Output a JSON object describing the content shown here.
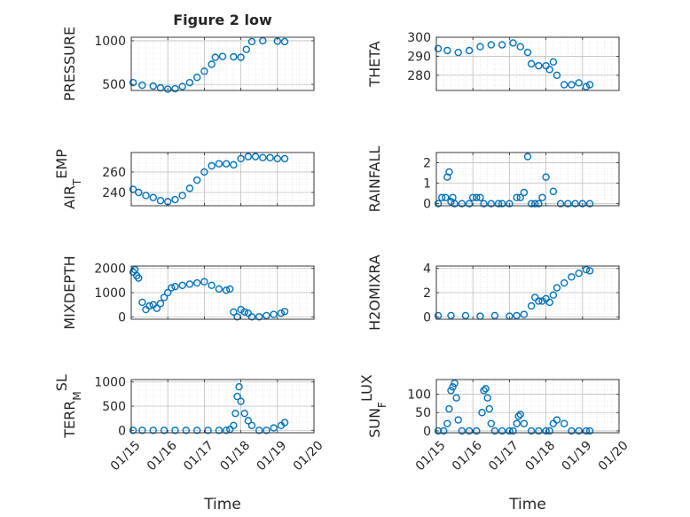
{
  "figure": {
    "title": "Figure 2 low",
    "xlabel": "Time"
  },
  "chart_data": [
    {
      "type": "scatter",
      "id": "pressure",
      "ylabel": "PRESSURE",
      "ylabel_sub": "",
      "ylabel_tail": "",
      "xlim": [
        0,
        5
      ],
      "ylim": [
        430,
        1040
      ],
      "yticks": [
        500,
        1000
      ],
      "ytick_labels": [
        "500",
        "1000"
      ],
      "grid": true,
      "minor_grid": true,
      "color": "#0072BD",
      "series": [
        {
          "x": [
            0.05,
            0.3,
            0.6,
            0.8,
            1.0,
            1.2,
            1.4,
            1.6,
            1.8,
            2.0,
            2.2,
            2.3,
            2.5,
            2.8,
            3.0,
            3.15,
            3.3,
            3.6,
            4.0,
            4.2
          ],
          "y": [
            520,
            490,
            480,
            460,
            445,
            450,
            475,
            520,
            580,
            650,
            730,
            810,
            820,
            815,
            810,
            900,
            990,
            1000,
            995,
            990
          ]
        }
      ]
    },
    {
      "type": "scatter",
      "id": "theta",
      "ylabel": "THETA",
      "ylabel_sub": "",
      "ylabel_tail": "",
      "xlim": [
        0,
        5
      ],
      "ylim": [
        272,
        300
      ],
      "yticks": [
        280,
        290,
        300
      ],
      "ytick_labels": [
        "280",
        "290",
        "300"
      ],
      "grid": true,
      "minor_grid": true,
      "color": "#0072BD",
      "series": [
        {
          "x": [
            0.05,
            0.3,
            0.6,
            0.9,
            1.2,
            1.5,
            1.8,
            2.1,
            2.3,
            2.5,
            2.6,
            2.8,
            3.0,
            3.1,
            3.2,
            3.3,
            3.5,
            3.7,
            3.9,
            4.1,
            4.2
          ],
          "y": [
            294,
            293,
            292,
            293,
            295,
            296,
            296,
            297,
            295,
            292,
            286,
            285,
            285,
            283,
            287,
            280,
            275,
            275,
            276,
            274,
            275
          ]
        }
      ]
    },
    {
      "type": "scatter",
      "id": "airtemp",
      "ylabel": "AIR",
      "ylabel_sub": "T",
      "ylabel_tail": "EMP",
      "xlim": [
        0,
        5
      ],
      "ylim": [
        227,
        279
      ],
      "yticks": [
        240,
        260
      ],
      "ytick_labels": [
        "240",
        "260"
      ],
      "grid": true,
      "minor_grid": true,
      "color": "#0072BD",
      "series": [
        {
          "x": [
            0.05,
            0.2,
            0.4,
            0.6,
            0.8,
            1.0,
            1.2,
            1.4,
            1.6,
            1.8,
            2.0,
            2.2,
            2.4,
            2.6,
            2.8,
            3.0,
            3.2,
            3.4,
            3.6,
            3.8,
            4.0,
            4.2
          ],
          "y": [
            243,
            240,
            237,
            235,
            232,
            231,
            233,
            237,
            244,
            252,
            260,
            266,
            268,
            268,
            267,
            273,
            275,
            275,
            274,
            274,
            273,
            273
          ]
        }
      ]
    },
    {
      "type": "scatter",
      "id": "rainfall",
      "ylabel": "RAINFALL",
      "ylabel_sub": "",
      "ylabel_tail": "",
      "xlim": [
        0,
        5
      ],
      "ylim": [
        -0.1,
        2.5
      ],
      "yticks": [
        0,
        1,
        2
      ],
      "ytick_labels": [
        "0",
        "1",
        "2"
      ],
      "grid": true,
      "minor_grid": true,
      "color": "#0072BD",
      "series": [
        {
          "x": [
            0.05,
            0.15,
            0.25,
            0.3,
            0.35,
            0.4,
            0.45,
            0.5,
            0.7,
            0.9,
            1.0,
            1.1,
            1.2,
            1.3,
            1.5,
            1.7,
            1.8,
            2.0,
            2.2,
            2.3,
            2.4,
            2.5,
            2.6,
            2.7,
            2.8,
            2.9,
            3.0,
            3.2,
            3.4,
            3.6,
            3.8,
            4.0,
            4.2
          ],
          "y": [
            0,
            0.3,
            0.3,
            1.3,
            1.55,
            0.1,
            0.3,
            0,
            0,
            0,
            0.3,
            0.3,
            0.3,
            0,
            0,
            0,
            0,
            0,
            0.3,
            0.3,
            0.55,
            2.3,
            0,
            0,
            0,
            0.3,
            1.3,
            0.6,
            0,
            0,
            0,
            0,
            0
          ]
        }
      ]
    },
    {
      "type": "scatter",
      "id": "mixdepth",
      "ylabel": "MIXDEPTH",
      "ylabel_sub": "",
      "ylabel_tail": "",
      "xlim": [
        0,
        5
      ],
      "ylim": [
        -100,
        2100
      ],
      "yticks": [
        0,
        1000,
        2000
      ],
      "ytick_labels": [
        "0",
        "1000",
        "2000"
      ],
      "grid": true,
      "minor_grid": true,
      "color": "#0072BD",
      "series": [
        {
          "x": [
            0.05,
            0.1,
            0.15,
            0.2,
            0.3,
            0.4,
            0.5,
            0.6,
            0.7,
            0.8,
            0.9,
            1.0,
            1.1,
            1.2,
            1.4,
            1.6,
            1.8,
            2.0,
            2.2,
            2.4,
            2.6,
            2.7,
            2.8,
            2.9,
            3.0,
            3.1,
            3.2,
            3.3,
            3.5,
            3.7,
            3.9,
            4.1,
            4.2
          ],
          "y": [
            1850,
            1950,
            1700,
            1600,
            600,
            300,
            450,
            500,
            350,
            550,
            800,
            1000,
            1200,
            1250,
            1300,
            1350,
            1400,
            1450,
            1300,
            1150,
            1100,
            1150,
            200,
            0,
            300,
            200,
            150,
            0,
            0,
            50,
            100,
            150,
            220
          ]
        }
      ]
    },
    {
      "type": "scatter",
      "id": "h2omixra",
      "ylabel": "H2OMIXRA",
      "ylabel_sub": "",
      "ylabel_tail": "",
      "xlim": [
        0,
        5
      ],
      "ylim": [
        -0.2,
        4.2
      ],
      "yticks": [
        0,
        2,
        4
      ],
      "ytick_labels": [
        "0",
        "2",
        "4"
      ],
      "grid": true,
      "minor_grid": true,
      "color": "#0072BD",
      "series": [
        {
          "x": [
            0.05,
            0.4,
            0.8,
            1.2,
            1.6,
            2.0,
            2.2,
            2.4,
            2.6,
            2.7,
            2.8,
            2.9,
            3.0,
            3.1,
            3.2,
            3.3,
            3.5,
            3.7,
            3.9,
            4.1,
            4.2
          ],
          "y": [
            0.1,
            0.1,
            0.1,
            0.05,
            0.1,
            0.05,
            0.1,
            0.2,
            0.9,
            1.6,
            1.3,
            1.3,
            1.5,
            1.2,
            1.8,
            2.4,
            2.8,
            3.3,
            3.6,
            3.9,
            3.8
          ]
        }
      ]
    },
    {
      "type": "scatter",
      "id": "terrmsl",
      "ylabel": "TERR",
      "ylabel_sub": "M",
      "ylabel_tail": "SL",
      "xlim": [
        0,
        5
      ],
      "ylim": [
        -50,
        1050
      ],
      "yticks": [
        0,
        500,
        1000
      ],
      "ytick_labels": [
        "0",
        "500",
        "1000"
      ],
      "grid": true,
      "minor_grid": true,
      "color": "#0072BD",
      "series": [
        {
          "x": [
            0.05,
            0.3,
            0.6,
            0.9,
            1.2,
            1.5,
            1.8,
            2.1,
            2.4,
            2.6,
            2.7,
            2.8,
            2.85,
            2.9,
            2.95,
            3.0,
            3.1,
            3.2,
            3.3,
            3.5,
            3.7,
            3.9,
            4.1,
            4.2
          ],
          "y": [
            0,
            0,
            0,
            0,
            0,
            0,
            0,
            0,
            0,
            0,
            20,
            100,
            350,
            700,
            900,
            600,
            350,
            200,
            100,
            0,
            0,
            50,
            100,
            160
          ]
        }
      ]
    },
    {
      "type": "scatter",
      "id": "sunflux",
      "ylabel": "SUN",
      "ylabel_sub": "F",
      "ylabel_tail": "LUX",
      "xlim": [
        0,
        5
      ],
      "ylim": [
        -5,
        140
      ],
      "yticks": [
        0,
        50,
        100
      ],
      "ytick_labels": [
        "0",
        "50",
        "100"
      ],
      "grid": true,
      "minor_grid": true,
      "color": "#0072BD",
      "series": [
        {
          "x": [
            0.05,
            0.2,
            0.3,
            0.35,
            0.4,
            0.45,
            0.5,
            0.55,
            0.6,
            0.7,
            0.9,
            1.1,
            1.25,
            1.3,
            1.35,
            1.4,
            1.45,
            1.5,
            1.6,
            1.8,
            2.0,
            2.1,
            2.2,
            2.25,
            2.3,
            2.4,
            2.6,
            2.8,
            3.0,
            3.1,
            3.2,
            3.3,
            3.5,
            3.7,
            3.9,
            4.1,
            4.2
          ],
          "y": [
            0,
            0,
            20,
            60,
            110,
            120,
            130,
            90,
            30,
            0,
            0,
            0,
            50,
            110,
            115,
            90,
            60,
            20,
            0,
            0,
            0,
            0,
            20,
            40,
            45,
            20,
            0,
            0,
            0,
            0,
            20,
            30,
            20,
            0,
            0,
            0,
            0
          ]
        }
      ]
    }
  ],
  "xaxis": {
    "ticks": [
      0,
      1,
      2,
      3,
      4,
      5
    ],
    "tick_labels": [
      "01/15",
      "01/16",
      "01/17",
      "01/18",
      "01/19",
      "01/20"
    ]
  }
}
